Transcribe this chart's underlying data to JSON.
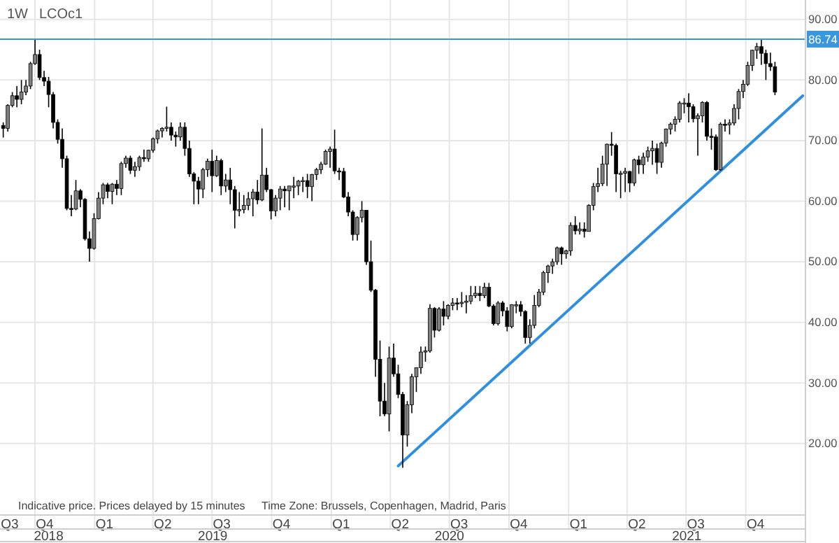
{
  "chart_data": {
    "type": "candlestick",
    "title": "LCOc1",
    "subtitle": "1W",
    "xlim": [
      "2018-08-08",
      "2022-01-01"
    ],
    "ylim": [
      8.2,
      93.2
    ],
    "xticks": [
      {
        "value": "2018-08-23",
        "label": "Q3"
      },
      {
        "value": "2018-10-16",
        "label": "Q4"
      },
      {
        "value": "2019-01-16",
        "label": "Q1"
      },
      {
        "value": "2019-04-16",
        "label": "Q2"
      },
      {
        "value": "2019-07-16",
        "label": "Q3"
      },
      {
        "value": "2019-10-16",
        "label": "Q4"
      },
      {
        "value": "2020-01-16",
        "label": "Q1"
      },
      {
        "value": "2020-04-16",
        "label": "Q2"
      },
      {
        "value": "2020-07-16",
        "label": "Q3"
      },
      {
        "value": "2020-10-16",
        "label": "Q4"
      },
      {
        "value": "2021-01-16",
        "label": "Q1"
      },
      {
        "value": "2021-04-16",
        "label": "Q2"
      },
      {
        "value": "2021-07-16",
        "label": "Q3"
      },
      {
        "value": "2021-10-16",
        "label": "Q4"
      }
    ],
    "x2lim": [
      "2018-08-08",
      "2022-01-01"
    ],
    "x2ticks": [
      {
        "value": "2018-10-22",
        "label": "2018"
      },
      {
        "value": "2019-07-02",
        "label": "2019"
      },
      {
        "value": "2020-07-01",
        "label": "2020"
      },
      {
        "value": "2021-07-02",
        "label": "2021"
      }
    ],
    "yticks": [
      {
        "value": 20,
        "label": "20.00"
      },
      {
        "value": 30,
        "label": "30.00"
      },
      {
        "value": 40,
        "label": "40.00"
      },
      {
        "value": 50,
        "label": "50.00"
      },
      {
        "value": 60,
        "label": "60.00"
      },
      {
        "value": 70,
        "label": "70.00"
      },
      {
        "value": 80,
        "label": "80.00"
      },
      {
        "value": 90,
        "label": "90.00"
      }
    ],
    "grid": true,
    "ref_lines": [
      {
        "axis": "y",
        "value": 86.74,
        "label": "86.74",
        "color": "#3a96dd"
      }
    ],
    "annotations": [
      "Indicative price. Prices delayed by 15 minutes",
      "Time Zone: Brussels, Copenhagen, Madrid, Paris"
    ],
    "series": [
      {
        "color": "#000000",
        "x": [
          "2018-08-13",
          "2018-08-20",
          "2018-08-27",
          "2018-09-03",
          "2018-09-10",
          "2018-09-17",
          "2018-09-24",
          "2018-10-01",
          "2018-10-08",
          "2018-10-15",
          "2018-10-22",
          "2018-10-29",
          "2018-11-05",
          "2018-11-12",
          "2018-11-19",
          "2018-11-26",
          "2018-12-03",
          "2018-12-10",
          "2018-12-17",
          "2018-12-24",
          "2018-12-31",
          "2019-01-07",
          "2019-01-14",
          "2019-01-21",
          "2019-01-28",
          "2019-02-04",
          "2019-02-11",
          "2019-02-18",
          "2019-02-25",
          "2019-03-04",
          "2019-03-11",
          "2019-03-18",
          "2019-03-25",
          "2019-04-01",
          "2019-04-08",
          "2019-04-15",
          "2019-04-22",
          "2019-04-29",
          "2019-05-06",
          "2019-05-13",
          "2019-05-20",
          "2019-05-27",
          "2019-06-03",
          "2019-06-10",
          "2019-06-17",
          "2019-06-24",
          "2019-07-01",
          "2019-07-08",
          "2019-07-15",
          "2019-07-22",
          "2019-07-29",
          "2019-08-05",
          "2019-08-12",
          "2019-08-19",
          "2019-08-26",
          "2019-09-02",
          "2019-09-09",
          "2019-09-16",
          "2019-09-23",
          "2019-09-30",
          "2019-10-07",
          "2019-10-14",
          "2019-10-21",
          "2019-10-28",
          "2019-11-04",
          "2019-11-11",
          "2019-11-18",
          "2019-11-25",
          "2019-12-02",
          "2019-12-09",
          "2019-12-16",
          "2019-12-23",
          "2019-12-30",
          "2020-01-06",
          "2020-01-13",
          "2020-01-20",
          "2020-01-27",
          "2020-02-03",
          "2020-02-10",
          "2020-02-17",
          "2020-02-24",
          "2020-03-02",
          "2020-03-09",
          "2020-03-16",
          "2020-03-23",
          "2020-03-30",
          "2020-04-06",
          "2020-04-13",
          "2020-04-20",
          "2020-04-27",
          "2020-05-04",
          "2020-05-11",
          "2020-05-18",
          "2020-05-25",
          "2020-06-01",
          "2020-06-08",
          "2020-06-15",
          "2020-06-22",
          "2020-06-29",
          "2020-07-06",
          "2020-07-13",
          "2020-07-20",
          "2020-07-27",
          "2020-08-03",
          "2020-08-10",
          "2020-08-17",
          "2020-08-24",
          "2020-08-31",
          "2020-09-07",
          "2020-09-14",
          "2020-09-21",
          "2020-09-28",
          "2020-10-05",
          "2020-10-12",
          "2020-10-19",
          "2020-10-26",
          "2020-11-02",
          "2020-11-09",
          "2020-11-16",
          "2020-11-23",
          "2020-11-30",
          "2020-12-07",
          "2020-12-14",
          "2020-12-21",
          "2020-12-28",
          "2021-01-04",
          "2021-01-11",
          "2021-01-18",
          "2021-01-25",
          "2021-02-01",
          "2021-02-08",
          "2021-02-15",
          "2021-02-22",
          "2021-03-01",
          "2021-03-08",
          "2021-03-15",
          "2021-03-22",
          "2021-03-29",
          "2021-04-05",
          "2021-04-12",
          "2021-04-19",
          "2021-04-26",
          "2021-05-03",
          "2021-05-10",
          "2021-05-17",
          "2021-05-24",
          "2021-05-31",
          "2021-06-07",
          "2021-06-14",
          "2021-06-21",
          "2021-06-28",
          "2021-07-05",
          "2021-07-12",
          "2021-07-19",
          "2021-07-26",
          "2021-08-02",
          "2021-08-09",
          "2021-08-16",
          "2021-08-23",
          "2021-08-30",
          "2021-09-06",
          "2021-09-13",
          "2021-09-20",
          "2021-09-27",
          "2021-10-04",
          "2021-10-11",
          "2021-10-18",
          "2021-10-25",
          "2021-11-01",
          "2021-11-08",
          "2021-11-15"
        ],
        "ohlc": [
          [
            72.5,
            73,
            70.5,
            72
          ],
          [
            72,
            76,
            71.5,
            75.8
          ],
          [
            75.8,
            78,
            75.5,
            77.4
          ],
          [
            77.4,
            79,
            75.5,
            76.8
          ],
          [
            76.8,
            80,
            76,
            78
          ],
          [
            78,
            80,
            77.5,
            79
          ],
          [
            79,
            83,
            78.5,
            82.7
          ],
          [
            82.7,
            86.74,
            82.5,
            84.2
          ],
          [
            84.2,
            85,
            80,
            80.4
          ],
          [
            80.4,
            81.5,
            79,
            79.8
          ],
          [
            79.8,
            80.5,
            75.5,
            77.6
          ],
          [
            77.6,
            78,
            72,
            73
          ],
          [
            73,
            73.5,
            69.5,
            70.2
          ],
          [
            70.2,
            72,
            65.5,
            67
          ],
          [
            67,
            67.5,
            58.5,
            58.8
          ],
          [
            58.8,
            61,
            57.5,
            58.7
          ],
          [
            58.7,
            63.5,
            58.5,
            61.7
          ],
          [
            61.7,
            62,
            59,
            60.3
          ],
          [
            60.3,
            60.5,
            53.5,
            53.8
          ],
          [
            53.8,
            55,
            50,
            52.2
          ],
          [
            52.2,
            58,
            52,
            57.1
          ],
          [
            57.1,
            61.5,
            57,
            60.5
          ],
          [
            60.5,
            63,
            59.5,
            62.7
          ],
          [
            62.7,
            63,
            60.5,
            61.6
          ],
          [
            61.6,
            63,
            59.5,
            62.8
          ],
          [
            62.8,
            63.5,
            61,
            62.1
          ],
          [
            62.1,
            66.5,
            61,
            66.2
          ],
          [
            66.2,
            67.5,
            65.5,
            67.1
          ],
          [
            67.1,
            67.5,
            64.5,
            65.1
          ],
          [
            65.1,
            66.5,
            64,
            65.7
          ],
          [
            65.7,
            67.5,
            65,
            67.2
          ],
          [
            67.2,
            68.5,
            66.5,
            67
          ],
          [
            67,
            68.5,
            66.5,
            68.4
          ],
          [
            68.4,
            70.5,
            68,
            70.3
          ],
          [
            70.3,
            71.8,
            69.5,
            71.6
          ],
          [
            71.6,
            72.2,
            70.5,
            72
          ],
          [
            72,
            75.6,
            71.5,
            72.2
          ],
          [
            72.2,
            73,
            70,
            70.9
          ],
          [
            70.9,
            71.5,
            69,
            70.6
          ],
          [
            70.6,
            73,
            70,
            72.2
          ],
          [
            72.2,
            73,
            67.5,
            68.7
          ],
          [
            68.7,
            70,
            64,
            64.5
          ],
          [
            64.5,
            64.8,
            59.5,
            63.3
          ],
          [
            63.3,
            64,
            59.5,
            62
          ],
          [
            62,
            65.5,
            60.5,
            65.2
          ],
          [
            65.2,
            67,
            64,
            66.6
          ],
          [
            66.6,
            68.5,
            61.5,
            64.2
          ],
          [
            64.2,
            67.5,
            64,
            66.7
          ],
          [
            66.7,
            67,
            61,
            62.5
          ],
          [
            62.5,
            64.5,
            61.5,
            63.5
          ],
          [
            63.5,
            65.5,
            59.5,
            61.9
          ],
          [
            61.9,
            62.5,
            55.5,
            58.5
          ],
          [
            58.5,
            61.5,
            57.5,
            58.6
          ],
          [
            58.6,
            61,
            58,
            59.3
          ],
          [
            59.3,
            61.5,
            58.5,
            60.4
          ],
          [
            60.4,
            62,
            57.5,
            61.5
          ],
          [
            61.5,
            63.5,
            59.5,
            60.2
          ],
          [
            60.2,
            72,
            60,
            64.3
          ],
          [
            64.3,
            65.5,
            61.5,
            61.9
          ],
          [
            61.9,
            62,
            57,
            58.4
          ],
          [
            58.4,
            61,
            57.5,
            60.5
          ],
          [
            60.5,
            62.5,
            58.5,
            62
          ],
          [
            62,
            62.5,
            59,
            61.7
          ],
          [
            61.7,
            62.5,
            58.5,
            62.5
          ],
          [
            62.5,
            64,
            60.5,
            62.5
          ],
          [
            62.5,
            63.5,
            61,
            63.3
          ],
          [
            63.3,
            64,
            61.5,
            63.4
          ],
          [
            63.4,
            64.5,
            60.5,
            62.4
          ],
          [
            62.4,
            64.5,
            60,
            64.4
          ],
          [
            64.4,
            65.5,
            63.5,
            65.2
          ],
          [
            65.2,
            66.5,
            64.5,
            66.1
          ],
          [
            66.1,
            68.5,
            66,
            68.2
          ],
          [
            68.2,
            69,
            65.5,
            68.6
          ],
          [
            68.6,
            71.8,
            64.5,
            65
          ],
          [
            65,
            65.5,
            63.5,
            64.9
          ],
          [
            64.9,
            65.5,
            60.5,
            60.7
          ],
          [
            60.7,
            61.5,
            57.5,
            58.2
          ],
          [
            58.2,
            58.5,
            53.5,
            54.5
          ],
          [
            54.5,
            57.5,
            53.5,
            57.3
          ],
          [
            57.3,
            60,
            56.5,
            58.5
          ],
          [
            58.5,
            58.5,
            49.5,
            50
          ],
          [
            50,
            53.5,
            45,
            45.3
          ],
          [
            45.3,
            45.5,
            31,
            33.9
          ],
          [
            33.9,
            37,
            24.5,
            27
          ],
          [
            27,
            30,
            24.5,
            24.9
          ],
          [
            24.9,
            36,
            22,
            34.1
          ],
          [
            34.1,
            36.5,
            31,
            31.5
          ],
          [
            31.5,
            33,
            27.5,
            28.1
          ],
          [
            28.1,
            28.5,
            16,
            21.4
          ],
          [
            21.4,
            27,
            19.5,
            26.4
          ],
          [
            26.4,
            31.5,
            25,
            31
          ],
          [
            31,
            32.5,
            28.5,
            32.5
          ],
          [
            32.5,
            36,
            31.5,
            35.1
          ],
          [
            35.1,
            36,
            33.5,
            35.3
          ],
          [
            35.3,
            43,
            35,
            42.3
          ],
          [
            42.3,
            42.5,
            37.5,
            38.7
          ],
          [
            38.7,
            42.5,
            38.5,
            42.2
          ],
          [
            42.2,
            43.5,
            39.5,
            41
          ],
          [
            41,
            43,
            40.5,
            42.8
          ],
          [
            42.8,
            44,
            42,
            43.2
          ],
          [
            43.2,
            44,
            42,
            43.1
          ],
          [
            43.1,
            45,
            42.5,
            43.3
          ],
          [
            43.3,
            44.5,
            41.5,
            43.5
          ],
          [
            43.5,
            46,
            43,
            44.4
          ],
          [
            44.4,
            46,
            44,
            44.8
          ],
          [
            44.8,
            46,
            43.5,
            44.4
          ],
          [
            44.4,
            46.5,
            44,
            45.8
          ],
          [
            45.8,
            46.5,
            42.5,
            42.7
          ],
          [
            42.7,
            43,
            39.5,
            39.8
          ],
          [
            39.8,
            43.5,
            39.5,
            43.2
          ],
          [
            43.2,
            43.5,
            41,
            41.9
          ],
          [
            41.9,
            42.5,
            38.5,
            39.3
          ],
          [
            39.3,
            43,
            39,
            42.9
          ],
          [
            42.9,
            43.5,
            41.5,
            42.9
          ],
          [
            42.9,
            43.5,
            41,
            41.8
          ],
          [
            41.8,
            42,
            36.5,
            37.5
          ],
          [
            37.5,
            40.5,
            36.5,
            39.5
          ],
          [
            39.5,
            44.5,
            39,
            42.8
          ],
          [
            42.8,
            45.5,
            42.5,
            45
          ],
          [
            45,
            48.5,
            44.5,
            48.2
          ],
          [
            48.2,
            49.5,
            46.5,
            49.3
          ],
          [
            49.3,
            50.5,
            48,
            50
          ],
          [
            50,
            52.5,
            49.5,
            52.3
          ],
          [
            52.3,
            52.5,
            49.5,
            51.3
          ],
          [
            51.3,
            52,
            50.5,
            51.8
          ],
          [
            51.8,
            56.5,
            51,
            56
          ],
          [
            56,
            57.5,
            54.5,
            55.1
          ],
          [
            55.1,
            56.5,
            54.5,
            55.4
          ],
          [
            55.4,
            56.5,
            54,
            55
          ],
          [
            55,
            59.5,
            55,
            59.3
          ],
          [
            59.3,
            63,
            58.5,
            62.4
          ],
          [
            62.4,
            65.5,
            61.5,
            62.9
          ],
          [
            62.9,
            67.5,
            62.5,
            66.1
          ],
          [
            66.1,
            69.5,
            62.5,
            69.4
          ],
          [
            69.4,
            71.4,
            67.5,
            69.2
          ],
          [
            69.2,
            69.5,
            61.5,
            64.5
          ],
          [
            64.5,
            65,
            60.5,
            64.6
          ],
          [
            64.6,
            65.5,
            61.5,
            64.9
          ],
          [
            64.9,
            65,
            61.5,
            63
          ],
          [
            63,
            67,
            62.5,
            66.8
          ],
          [
            66.8,
            67.5,
            64.5,
            66
          ],
          [
            66,
            68,
            64.5,
            67.3
          ],
          [
            67.3,
            69,
            66.5,
            68.3
          ],
          [
            68.3,
            70,
            66,
            68.7
          ],
          [
            68.7,
            69.5,
            64.5,
            66.4
          ],
          [
            66.4,
            69.8,
            65.5,
            69.6
          ],
          [
            69.6,
            72,
            69,
            71.9
          ],
          [
            71.9,
            73,
            71,
            72.7
          ],
          [
            72.7,
            74,
            71.5,
            73.5
          ],
          [
            73.5,
            76.5,
            73,
            76.2
          ],
          [
            76.2,
            77,
            74.5,
            76.2
          ],
          [
            76.2,
            77.8,
            73,
            75.6
          ],
          [
            75.6,
            76,
            73,
            73.6
          ],
          [
            73.6,
            74.5,
            67.5,
            74.1
          ],
          [
            74.1,
            76.5,
            73,
            76.3
          ],
          [
            76.3,
            76.5,
            70,
            70.7
          ],
          [
            70.7,
            72,
            68.5,
            70.6
          ],
          [
            70.6,
            71,
            65,
            65.2
          ],
          [
            65.2,
            73,
            65,
            72.7
          ],
          [
            72.7,
            73.5,
            71.5,
            72.6
          ],
          [
            72.6,
            73.5,
            71,
            72.9
          ],
          [
            72.9,
            76,
            72.5,
            75.3
          ],
          [
            75.3,
            78.5,
            73.5,
            78.1
          ],
          [
            78.1,
            80,
            77,
            79.3
          ],
          [
            79.3,
            83,
            79,
            82.4
          ],
          [
            82.4,
            85,
            81.5,
            84.9
          ],
          [
            84.9,
            86.1,
            83.5,
            85.5
          ],
          [
            85.5,
            86.7,
            82.5,
            84.4
          ],
          [
            84.4,
            85,
            80,
            82.7
          ],
          [
            82.7,
            84.5,
            81.5,
            82.2
          ],
          [
            82.2,
            83,
            77.5,
            78
          ]
        ]
      },
      {
        "type": "line",
        "color": "#2f8fe0",
        "x": [
          "2020-04-13",
          "2021-12-28"
        ],
        "values": [
          16.3,
          77.4
        ]
      }
    ]
  }
}
